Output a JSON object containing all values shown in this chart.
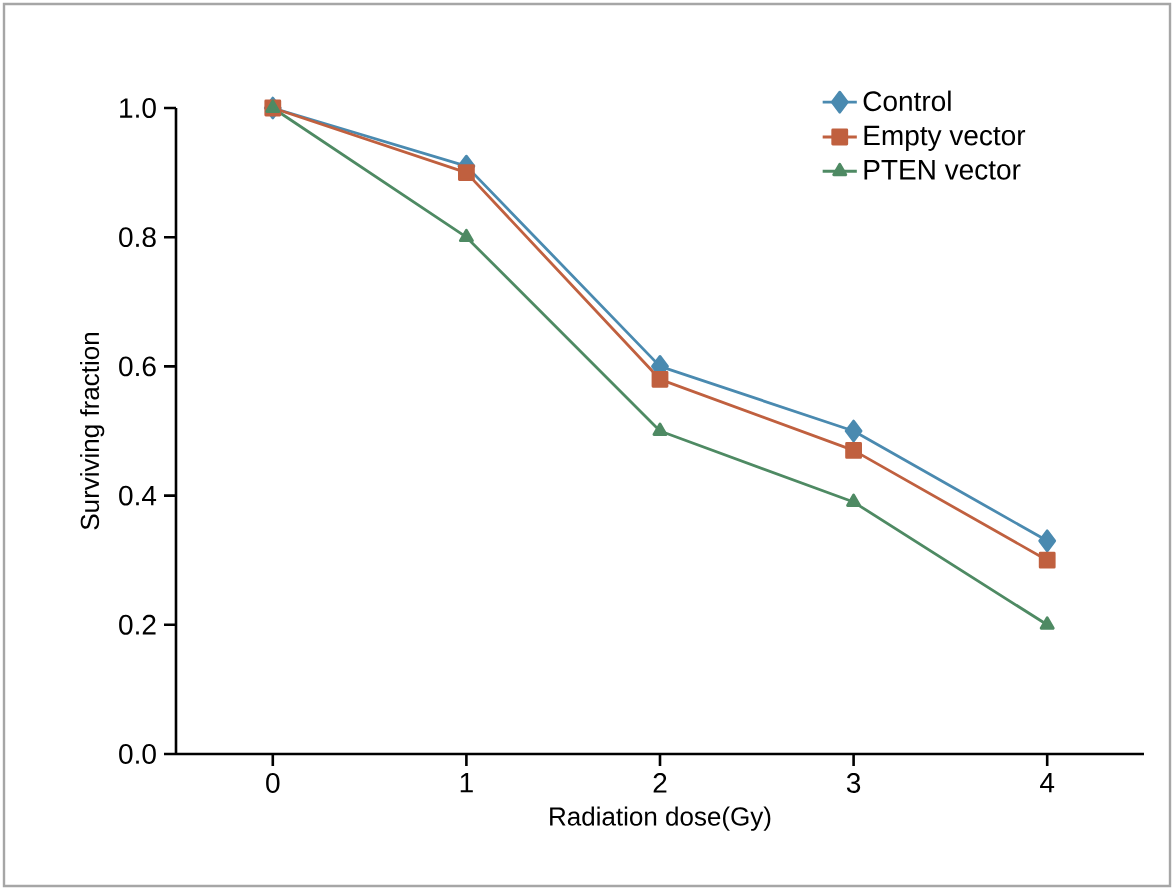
{
  "chart_data": {
    "type": "line",
    "xlabel": "Radiation dose(Gy)",
    "ylabel": "Surviving fraction",
    "x": [
      0,
      1,
      2,
      3,
      4
    ],
    "series": [
      {
        "name": "Control",
        "color": "#4a8ab0",
        "marker": "diamond",
        "values": [
          1.0,
          0.91,
          0.6,
          0.5,
          0.33
        ]
      },
      {
        "name": "Empty vector",
        "color": "#c0603f",
        "marker": "square",
        "values": [
          1.0,
          0.9,
          0.58,
          0.47,
          0.3
        ]
      },
      {
        "name": "PTEN vector",
        "color": "#4e8a63",
        "marker": "triangle",
        "values": [
          1.0,
          0.8,
          0.5,
          0.39,
          0.2
        ]
      }
    ],
    "xlim": [
      -0.5,
      4.5
    ],
    "ylim": [
      0,
      1
    ],
    "xticks": [
      0,
      1,
      2,
      3,
      4
    ],
    "yticks": [
      {
        "value": 0,
        "label": "0.0"
      },
      {
        "value": 0.2,
        "label": "0.2"
      },
      {
        "value": 0.4,
        "label": "0.4"
      },
      {
        "value": 0.6,
        "label": "0.6"
      },
      {
        "value": 0.8,
        "label": "0.8"
      },
      {
        "value": 1,
        "label": "1.0"
      }
    ],
    "grid": false,
    "legend": "top right",
    "line_style": "solid"
  }
}
